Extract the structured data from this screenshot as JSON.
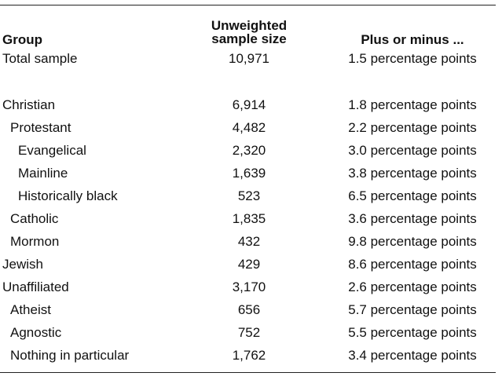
{
  "table": {
    "headers": {
      "group": "Group",
      "sample_size_line1": "Unweighted",
      "sample_size_line2": "sample size",
      "margin": "Plus or minus ..."
    },
    "rows": [
      {
        "group": "Total sample",
        "sample_size": "10,971",
        "margin": "1.5 percentage points",
        "indent": 0
      },
      {
        "group": "Christian",
        "sample_size": "6,914",
        "margin": "1.8 percentage points",
        "indent": 0
      },
      {
        "group": "Protestant",
        "sample_size": "4,482",
        "margin": "2.2 percentage points",
        "indent": 1
      },
      {
        "group": "Evangelical",
        "sample_size": "2,320",
        "margin": "3.0 percentage points",
        "indent": 2
      },
      {
        "group": "Mainline",
        "sample_size": "1,639",
        "margin": "3.8 percentage points",
        "indent": 2
      },
      {
        "group": "Historically black",
        "sample_size": "523",
        "margin": "6.5 percentage points",
        "indent": 2
      },
      {
        "group": "Catholic",
        "sample_size": "1,835",
        "margin": "3.6 percentage points",
        "indent": 1
      },
      {
        "group": "Mormon",
        "sample_size": "432",
        "margin": "9.8 percentage points",
        "indent": 1
      },
      {
        "group": "Jewish",
        "sample_size": "429",
        "margin": "8.6 percentage points",
        "indent": 0
      },
      {
        "group": "Unaffiliated",
        "sample_size": "3,170",
        "margin": "2.6 percentage points",
        "indent": 0
      },
      {
        "group": "Atheist",
        "sample_size": "656",
        "margin": "5.7 percentage points",
        "indent": 1
      },
      {
        "group": "Agnostic",
        "sample_size": "752",
        "margin": "5.5 percentage points",
        "indent": 1
      },
      {
        "group": "Nothing in particular",
        "sample_size": "1,762",
        "margin": "3.4 percentage points",
        "indent": 1
      }
    ]
  }
}
